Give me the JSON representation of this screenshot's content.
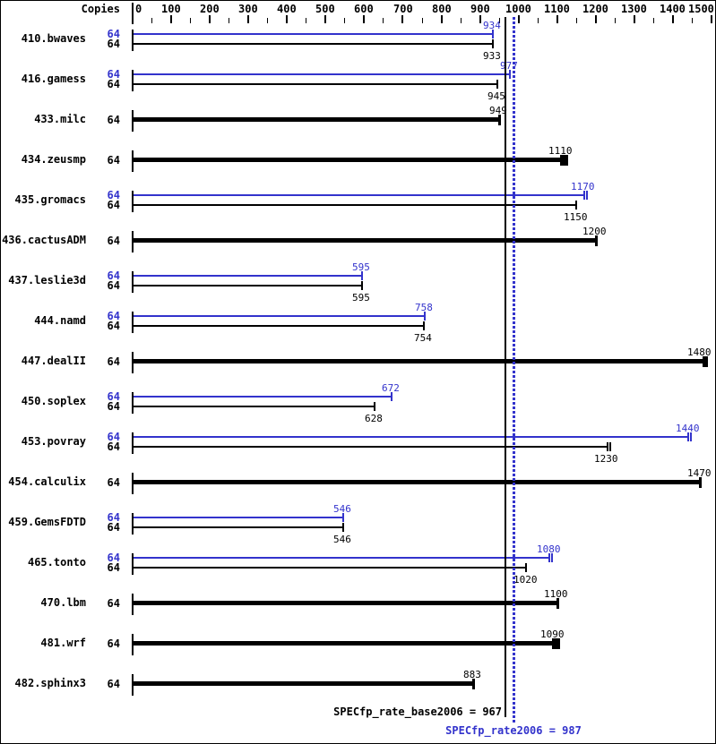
{
  "header": {
    "copies_label": "Copies"
  },
  "axis": {
    "min": 0,
    "max": 1500,
    "major_step": 100,
    "minor_step": 50,
    "tick_labels": [
      "0",
      "100",
      "200",
      "300",
      "400",
      "500",
      "600",
      "700",
      "800",
      "900",
      "1000",
      "1100",
      "1200",
      "1300",
      "1400",
      "1500"
    ]
  },
  "colors": {
    "peak_blue": "#3333cc",
    "base_black": "#000000"
  },
  "summary": {
    "base_text": "SPECfp_rate_base2006 = 967",
    "peak_text": "SPECfp_rate2006 = 987"
  },
  "chart_data": {
    "type": "bar",
    "orientation": "horizontal",
    "title": "",
    "xlabel": "",
    "ylabel": "Copies",
    "xlim": [
      0,
      1500
    ],
    "x_axis_position": "top",
    "grid": false,
    "legend": "none",
    "categories": [
      "410.bwaves",
      "416.gamess",
      "433.milc",
      "434.zeusmp",
      "435.gromacs",
      "436.cactusADM",
      "437.leslie3d",
      "444.namd",
      "447.dealII",
      "450.soplex",
      "453.povray",
      "454.calculix",
      "459.GemsFDTD",
      "465.tonto",
      "470.lbm",
      "481.wrf",
      "482.sphinx3"
    ],
    "copies": [
      64,
      64,
      64,
      64,
      64,
      64,
      64,
      64,
      64,
      64,
      64,
      64,
      64,
      64,
      64,
      64,
      64
    ],
    "series": [
      {
        "name": "base",
        "color": "#000000",
        "values": [
          933,
          945,
          949,
          1110,
          1150,
          1200,
          595,
          754,
          1480,
          628,
          1230,
          1470,
          546,
          1020,
          1100,
          1090,
          883
        ]
      },
      {
        "name": "peak",
        "color": "#3333cc",
        "values": [
          934,
          977,
          null,
          null,
          1170,
          null,
          595,
          758,
          null,
          672,
          1440,
          null,
          546,
          1080,
          null,
          null,
          null
        ]
      }
    ],
    "run_ticks": {
      "base": [
        1,
        1,
        1,
        3,
        1,
        1,
        1,
        1,
        2,
        1,
        2,
        1,
        1,
        1,
        1,
        3,
        1
      ],
      "peak": [
        1,
        1,
        0,
        0,
        2,
        0,
        1,
        1,
        0,
        1,
        2,
        0,
        1,
        2,
        0,
        0,
        0
      ]
    },
    "reference_lines": [
      {
        "label": "SPECfp_rate_base2006",
        "value": 967,
        "style": "solid",
        "color": "#000000"
      },
      {
        "label": "SPECfp_rate2006",
        "value": 987,
        "style": "dotted",
        "color": "#3333cc"
      }
    ]
  }
}
